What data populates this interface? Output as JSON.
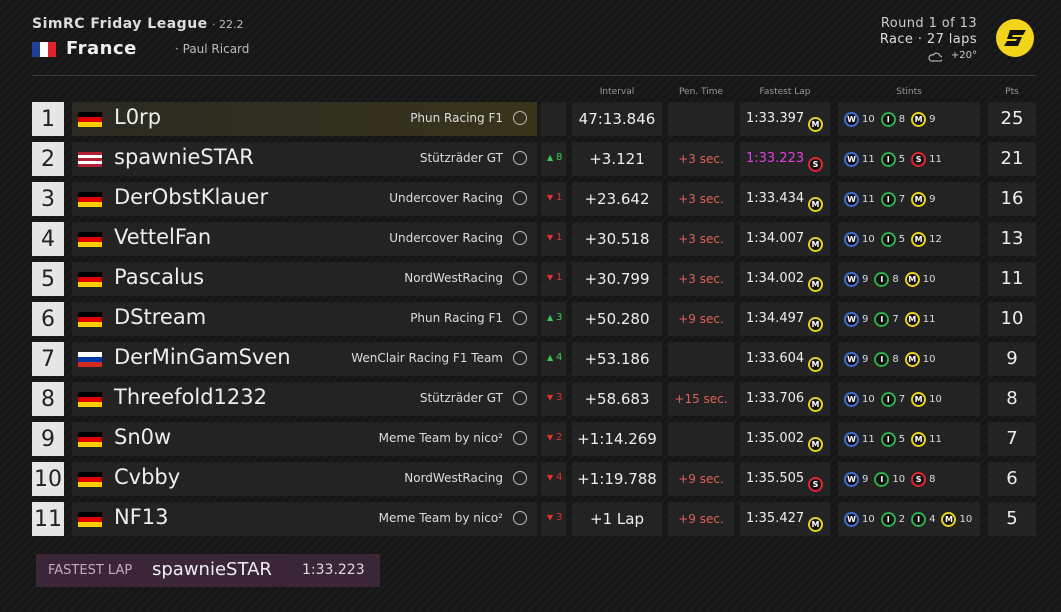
{
  "header": {
    "league": "SimRC Friday League",
    "season": "· 22.2",
    "country": "France",
    "country_flag": [
      "#1f3f99",
      "#ffffff",
      "#e0242f"
    ],
    "track": "· Paul Ricard",
    "round": "Round 1 of 13",
    "race": "Race · 27 laps",
    "weather": "+20°"
  },
  "columns": {
    "interval": "Interval",
    "penalty": "Pen. Time",
    "fastest_lap": "Fastest Lap",
    "stints": "Stints",
    "points": "Pts"
  },
  "compound_colors": {
    "W": "#3d6fd8",
    "I": "#2fae4a",
    "M": "#e8d21e",
    "S": "#e0262f"
  },
  "rows": [
    {
      "pos": "1",
      "flag": [
        "#000000",
        "#dd0000",
        "#ffce00"
      ],
      "driver": "L0rp",
      "team": "Phun Racing F1",
      "change": null,
      "change_dir": null,
      "interval": "47:13.846",
      "penalty": null,
      "fastest_lap": "1:33.397",
      "fl_tyre": "M",
      "fastest": false,
      "stints": [
        {
          "c": "W",
          "laps": "10"
        },
        {
          "c": "I",
          "laps": "8"
        },
        {
          "c": "M",
          "laps": "9"
        }
      ],
      "points": "25"
    },
    {
      "pos": "2",
      "flag": [
        "#b22234",
        "#ffffff",
        "#b22234",
        "#ffffff",
        "#b22234"
      ],
      "driver": "spawnieSTAR",
      "team": "Stützräder GT",
      "change": "8",
      "change_dir": "up",
      "interval": "+3.121",
      "penalty": "+3 sec.",
      "fastest_lap": "1:33.223",
      "fl_tyre": "S",
      "fastest": true,
      "stints": [
        {
          "c": "W",
          "laps": "11"
        },
        {
          "c": "I",
          "laps": "5"
        },
        {
          "c": "S",
          "laps": "11"
        }
      ],
      "points": "21"
    },
    {
      "pos": "3",
      "flag": [
        "#000000",
        "#dd0000",
        "#ffce00"
      ],
      "driver": "DerObstKlauer",
      "team": "Undercover Racing",
      "change": "1",
      "change_dir": "down",
      "interval": "+23.642",
      "penalty": "+3 sec.",
      "fastest_lap": "1:33.434",
      "fl_tyre": "M",
      "fastest": false,
      "stints": [
        {
          "c": "W",
          "laps": "11"
        },
        {
          "c": "I",
          "laps": "7"
        },
        {
          "c": "M",
          "laps": "9"
        }
      ],
      "points": "16"
    },
    {
      "pos": "4",
      "flag": [
        "#000000",
        "#dd0000",
        "#ffce00"
      ],
      "driver": "VettelFan",
      "team": "Undercover Racing",
      "change": "1",
      "change_dir": "down",
      "interval": "+30.518",
      "penalty": "+3 sec.",
      "fastest_lap": "1:34.007",
      "fl_tyre": "M",
      "fastest": false,
      "stints": [
        {
          "c": "W",
          "laps": "10"
        },
        {
          "c": "I",
          "laps": "5"
        },
        {
          "c": "M",
          "laps": "12"
        }
      ],
      "points": "13"
    },
    {
      "pos": "5",
      "flag": [
        "#000000",
        "#dd0000",
        "#ffce00"
      ],
      "driver": "Pascalus",
      "team": "NordWestRacing",
      "change": "1",
      "change_dir": "down",
      "interval": "+30.799",
      "penalty": "+3 sec.",
      "fastest_lap": "1:34.002",
      "fl_tyre": "M",
      "fastest": false,
      "stints": [
        {
          "c": "W",
          "laps": "9"
        },
        {
          "c": "I",
          "laps": "8"
        },
        {
          "c": "M",
          "laps": "10"
        }
      ],
      "points": "11"
    },
    {
      "pos": "6",
      "flag": [
        "#000000",
        "#dd0000",
        "#ffce00"
      ],
      "driver": "DStream",
      "team": "Phun Racing F1",
      "change": "3",
      "change_dir": "up",
      "interval": "+50.280",
      "penalty": "+9 sec.",
      "fastest_lap": "1:34.497",
      "fl_tyre": "M",
      "fastest": false,
      "stints": [
        {
          "c": "W",
          "laps": "9"
        },
        {
          "c": "I",
          "laps": "7"
        },
        {
          "c": "M",
          "laps": "11"
        }
      ],
      "points": "10"
    },
    {
      "pos": "7",
      "flag": [
        "#ffffff",
        "#0039a6",
        "#d52b1e"
      ],
      "driver": "DerMinGamSven",
      "team": "WenClair Racing F1 Team",
      "change": "4",
      "change_dir": "up",
      "interval": "+53.186",
      "penalty": null,
      "fastest_lap": "1:33.604",
      "fl_tyre": "M",
      "fastest": false,
      "stints": [
        {
          "c": "W",
          "laps": "9"
        },
        {
          "c": "I",
          "laps": "8"
        },
        {
          "c": "M",
          "laps": "10"
        }
      ],
      "points": "9"
    },
    {
      "pos": "8",
      "flag": [
        "#000000",
        "#dd0000",
        "#ffce00"
      ],
      "driver": "Threefold1232",
      "team": "Stützräder GT",
      "change": "3",
      "change_dir": "down",
      "interval": "+58.683",
      "penalty": "+15 sec.",
      "fastest_lap": "1:33.706",
      "fl_tyre": "M",
      "fastest": false,
      "stints": [
        {
          "c": "W",
          "laps": "10"
        },
        {
          "c": "I",
          "laps": "7"
        },
        {
          "c": "M",
          "laps": "10"
        }
      ],
      "points": "8"
    },
    {
      "pos": "9",
      "flag": [
        "#000000",
        "#dd0000",
        "#ffce00"
      ],
      "driver": "Sn0w",
      "team": "Meme Team by nico²",
      "change": "2",
      "change_dir": "down",
      "interval": "+1:14.269",
      "penalty": null,
      "fastest_lap": "1:35.002",
      "fl_tyre": "M",
      "fastest": false,
      "stints": [
        {
          "c": "W",
          "laps": "11"
        },
        {
          "c": "I",
          "laps": "5"
        },
        {
          "c": "M",
          "laps": "11"
        }
      ],
      "points": "7"
    },
    {
      "pos": "10",
      "flag": [
        "#000000",
        "#dd0000",
        "#ffce00"
      ],
      "driver": "Cvbby",
      "team": "NordWestRacing",
      "change": "4",
      "change_dir": "down",
      "interval": "+1:19.788",
      "penalty": "+9 sec.",
      "fastest_lap": "1:35.505",
      "fl_tyre": "S",
      "fastest": false,
      "stints": [
        {
          "c": "W",
          "laps": "9"
        },
        {
          "c": "I",
          "laps": "10"
        },
        {
          "c": "S",
          "laps": "8"
        }
      ],
      "points": "6"
    },
    {
      "pos": "11",
      "flag": [
        "#000000",
        "#dd0000",
        "#ffce00"
      ],
      "driver": "NF13",
      "team": "Meme Team by nico²",
      "change": "3",
      "change_dir": "down",
      "interval": "+1 Lap",
      "penalty": "+9 sec.",
      "fastest_lap": "1:35.427",
      "fl_tyre": "M",
      "fastest": false,
      "stints": [
        {
          "c": "W",
          "laps": "10"
        },
        {
          "c": "I",
          "laps": "2"
        },
        {
          "c": "I",
          "laps": "4"
        },
        {
          "c": "M",
          "laps": "10"
        }
      ],
      "points": "5"
    }
  ],
  "footer": {
    "label": "FASTEST LAP",
    "driver": "spawnieSTAR",
    "time": "1:33.223"
  }
}
